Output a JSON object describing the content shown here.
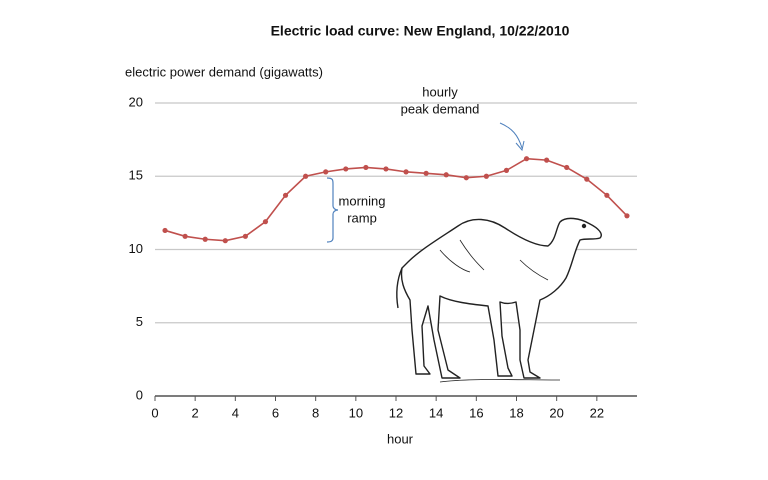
{
  "chart_data": {
    "type": "line",
    "title": "Electric load curve:  New England, 10/22/2010",
    "y_label": "electric power demand (gigawatts)",
    "x_label": "hour",
    "x": [
      0.5,
      1.5,
      2.5,
      3.5,
      4.5,
      5.5,
      6.5,
      7.5,
      8.5,
      9.5,
      10.5,
      11.5,
      12.5,
      13.5,
      14.5,
      15.5,
      16.5,
      17.5,
      18.5,
      19.5,
      20.5,
      21.5,
      22.5,
      23.5
    ],
    "series": [
      {
        "name": "electric power demand",
        "color": "#c0504d",
        "values": [
          11.3,
          10.9,
          10.7,
          10.6,
          10.9,
          11.9,
          13.7,
          15.0,
          15.3,
          15.5,
          15.6,
          15.5,
          15.3,
          15.2,
          15.1,
          14.9,
          15.0,
          15.4,
          16.2,
          16.1,
          15.6,
          14.8,
          13.7,
          12.3
        ]
      }
    ],
    "xlim": [
      0,
      24
    ],
    "xticks": [
      0,
      2,
      4,
      6,
      8,
      10,
      12,
      14,
      16,
      18,
      20,
      22
    ],
    "ylim": [
      0,
      20
    ],
    "yticks": [
      0,
      5,
      10,
      15,
      20
    ],
    "grid": true,
    "annotations": [
      {
        "lines": [
          "hourly",
          "peak demand"
        ]
      },
      {
        "lines": [
          "morning",
          "ramp"
        ]
      }
    ]
  }
}
